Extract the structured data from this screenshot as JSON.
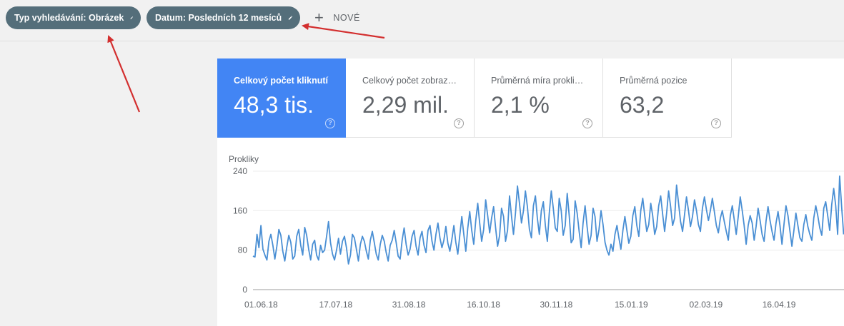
{
  "filters": {
    "search_type": "Typ vyhledávání: Obrázek",
    "date": "Datum: Posledních 12 mesíců",
    "add_new": "NOVÉ",
    "chip_color": "#546e7a"
  },
  "metrics": [
    {
      "label": "Celkový počet kliknutí",
      "value": "48,3 tis.",
      "active": true,
      "help": "?"
    },
    {
      "label": "Celkový počet zobraz…",
      "value": "2,29 mil.",
      "active": false,
      "help": "?"
    },
    {
      "label": "Průměrná míra prokli…",
      "value": "2,1 %",
      "active": false,
      "help": "?"
    },
    {
      "label": "Průměrná pozice",
      "value": "63,2",
      "active": false,
      "help": "?"
    }
  ],
  "colors": {
    "accent": "#4285f4",
    "line": "#4a8fd4",
    "annotation_arrow": "#d32f2f"
  },
  "chart_data": {
    "type": "line",
    "ylabel": "Prokliky",
    "yticks": [
      0,
      80,
      160,
      240
    ],
    "ylim": [
      0,
      240
    ],
    "xlim": [
      "2018-06-01",
      "2019-05-31"
    ],
    "xtick_labels": [
      {
        "date": "2018-06-01",
        "label": "01.06.18"
      },
      {
        "date": "2018-07-17",
        "label": "17.07.18"
      },
      {
        "date": "2018-08-31",
        "label": "31.08.18"
      },
      {
        "date": "2018-10-16",
        "label": "16.10.18"
      },
      {
        "date": "2018-11-30",
        "label": "30.11.18"
      },
      {
        "date": "2019-01-15",
        "label": "15.01.19"
      },
      {
        "date": "2019-03-02",
        "label": "02.03.19"
      },
      {
        "date": "2019-04-16",
        "label": "16.04.19"
      }
    ],
    "grid": true,
    "series": [
      {
        "values": [
          68,
          66,
          112,
          85,
          130,
          82,
          70,
          60,
          98,
          112,
          90,
          62,
          88,
          122,
          110,
          78,
          58,
          86,
          110,
          96,
          62,
          68,
          108,
          122,
          90,
          70,
          126,
          110,
          82,
          60,
          92,
          100,
          70,
          60,
          90,
          75,
          80,
          108,
          138,
          95,
          72,
          60,
          80,
          104,
          72,
          98,
          108,
          85,
          52,
          70,
          112,
          105,
          82,
          58,
          92,
          108,
          98,
          78,
          62,
          100,
          118,
          95,
          72,
          60,
          92,
          110,
          98,
          75,
          58,
          90,
          100,
          120,
          95,
          68,
          62,
          100,
          125,
          92,
          70,
          82,
          108,
          120,
          88,
          70,
          105,
          118,
          90,
          75,
          120,
          130,
          98,
          80,
          112,
          135,
          105,
          85,
          100,
          128,
          94,
          78,
          102,
          130,
          96,
          72,
          110,
          148,
          112,
          78,
          124,
          158,
          120,
          92,
          140,
          175,
          135,
          98,
          122,
          182,
          150,
          115,
          145,
          168,
          125,
          88,
          110,
          165,
          148,
          98,
          120,
          190,
          148,
          112,
          155,
          210,
          175,
          135,
          160,
          200,
          168,
          122,
          105,
          170,
          190,
          145,
          112,
          160,
          178,
          130,
          98,
          155,
          200,
          165,
          125,
          118,
          185,
          160,
          110,
          130,
          195,
          150,
          95,
          102,
          180,
          155,
          118,
          85,
          135,
          170,
          128,
          92,
          110,
          165,
          148,
          98,
          122,
          160,
          132,
          96,
          80,
          70,
          92,
          78,
          112,
          130,
          105,
          82,
          120,
          148,
          120,
          94,
          108,
          150,
          168,
          130,
          108,
          160,
          185,
          150,
          118,
          132,
          175,
          150,
          112,
          128,
          170,
          190,
          152,
          118,
          155,
          200,
          168,
          130,
          145,
          212,
          175,
          138,
          118,
          152,
          188,
          160,
          128,
          148,
          182,
          160,
          132,
          118,
          165,
          188,
          162,
          140,
          160,
          185,
          158,
          130,
          115,
          145,
          160,
          138,
          118,
          100,
          150,
          170,
          142,
          112,
          148,
          188,
          160,
          130,
          92,
          130,
          150,
          135,
          100,
          128,
          165,
          140,
          112,
          98,
          140,
          168,
          140,
          118,
          100,
          135,
          158,
          130,
          92,
          132,
          170,
          150,
          118,
          88,
          120,
          155,
          130,
          105,
          98,
          132,
          152,
          128,
          112,
          100,
          145,
          170,
          150,
          125,
          110,
          165,
          178,
          150,
          120,
          172,
          205,
          170,
          112,
          230,
          168,
          112
        ]
      }
    ]
  }
}
